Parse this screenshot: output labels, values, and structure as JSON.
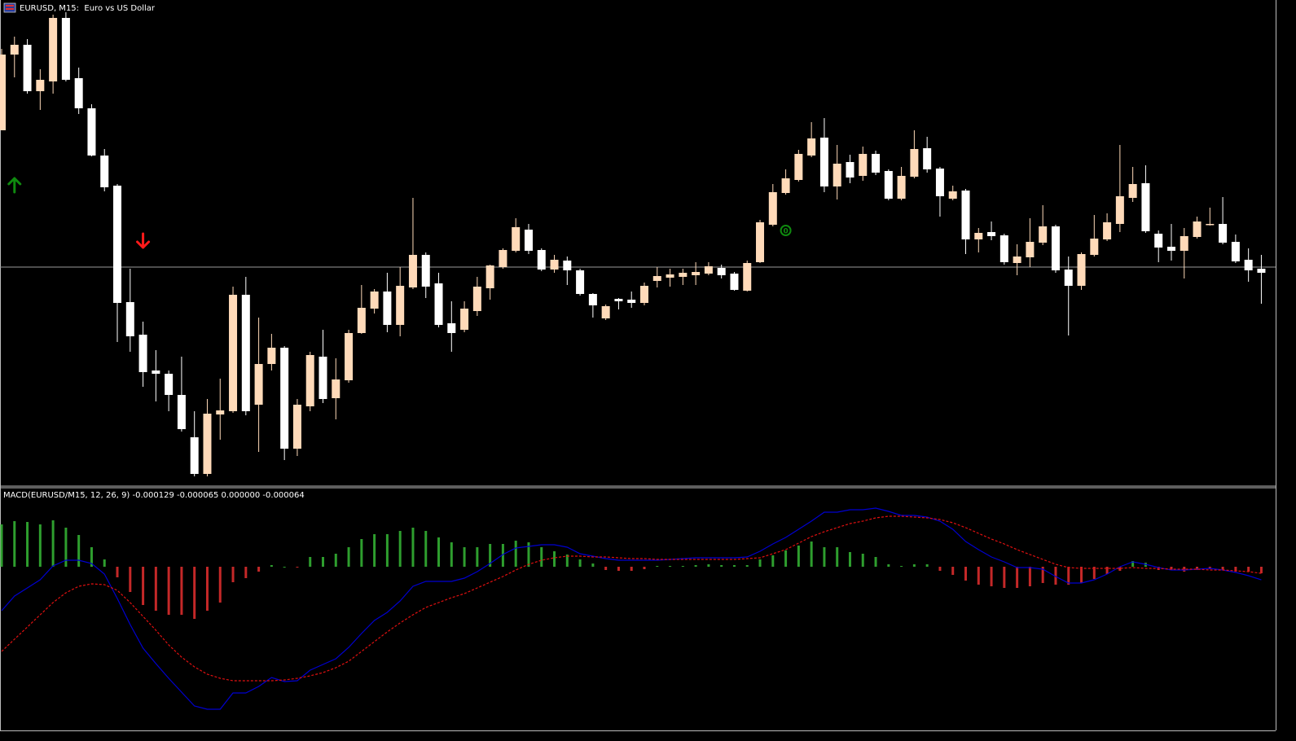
{
  "chart_data": [
    {
      "type": "candlestick",
      "title": "EURUSD, M15:  Euro vs US Dollar",
      "open": [
        436,
        529,
        541,
        484,
        496,
        574,
        500,
        463,
        405,
        368,
        225,
        185,
        141,
        137,
        111,
        59,
        14,
        87,
        91,
        234,
        99,
        149,
        169,
        45,
        97,
        158,
        107,
        129,
        187,
        217,
        238,
        197,
        243,
        283,
        248,
        199,
        191,
        214,
        242,
        268,
        288,
        314,
        289,
        265,
        276,
        264,
        235,
        205,
        229,
        228,
        224,
        251,
        255,
        256,
        258,
        260,
        267,
        260,
        239,
        274,
        320,
        359,
        375,
        405,
        427,
        367,
        397,
        380,
        407,
        386,
        352,
        379,
        414,
        389,
        352,
        362,
        302,
        311,
        307,
        273,
        280,
        298,
        318,
        265,
        245,
        283,
        302,
        321,
        353,
        371,
        309,
        293,
        288,
        305,
        320,
        321,
        299,
        277,
        266
      ],
      "high": [
        536,
        551,
        548,
        511,
        578,
        581,
        513,
        468,
        413,
        370,
        266,
        201,
        166,
        141,
        158,
        91,
        106,
        131,
        244,
        256,
        206,
        186,
        171,
        106,
        164,
        191,
        156,
        191,
        246,
        241,
        261,
        268,
        353,
        286,
        261,
        226,
        226,
        256,
        271,
        291,
        328,
        321,
        291,
        283,
        281,
        266,
        236,
        222,
        230,
        238,
        249,
        268,
        266,
        266,
        274,
        274,
        271,
        262,
        276,
        326,
        370,
        388,
        412,
        446,
        451,
        418,
        406,
        416,
        411,
        388,
        391,
        436,
        428,
        391,
        368,
        364,
        316,
        324,
        309,
        296,
        328,
        344,
        320,
        281,
        286,
        332,
        334,
        418,
        391,
        393,
        313,
        321,
        316,
        330,
        341,
        354,
        308,
        291,
        283
      ],
      "low": [
        436,
        501,
        481,
        461,
        481,
        496,
        456,
        404,
        361,
        176,
        164,
        121,
        103,
        91,
        66,
        11,
        11,
        56,
        89,
        86,
        41,
        141,
        31,
        36,
        91,
        101,
        81,
        126,
        186,
        211,
        188,
        183,
        241,
        230,
        194,
        164,
        188,
        208,
        228,
        266,
        286,
        284,
        263,
        261,
        246,
        233,
        206,
        203,
        216,
        218,
        221,
        243,
        244,
        246,
        246,
        258,
        254,
        239,
        238,
        273,
        318,
        357,
        373,
        403,
        360,
        351,
        371,
        374,
        381,
        350,
        350,
        377,
        384,
        330,
        350,
        284,
        286,
        301,
        271,
        258,
        268,
        295,
        261,
        184,
        240,
        281,
        300,
        311,
        348,
        310,
        274,
        276,
        254,
        303,
        319,
        296,
        273,
        250,
        223
      ],
      "close": [
        529,
        541,
        484,
        498,
        574,
        498,
        463,
        405,
        366,
        224,
        183,
        139,
        137,
        111,
        69,
        14,
        88,
        92,
        234,
        91,
        149,
        169,
        45,
        99,
        160,
        106,
        130,
        187,
        218,
        238,
        197,
        245,
        283,
        244,
        197,
        187,
        217,
        244,
        270,
        289,
        317,
        288,
        265,
        277,
        264,
        235,
        221,
        220,
        226,
        224,
        245,
        257,
        259,
        261,
        262,
        269,
        258,
        240,
        273,
        323,
        360,
        377,
        407,
        426,
        367,
        395,
        378,
        407,
        384,
        352,
        380,
        413,
        388,
        355,
        361,
        302,
        310,
        306,
        274,
        281,
        299,
        318,
        264,
        245,
        284,
        303,
        323,
        355,
        370,
        312,
        292,
        288,
        306,
        324,
        321,
        298,
        275,
        264,
        261
      ],
      "ylim": [
        0,
        594
      ],
      "colors": {
        "up": "#ffdab9",
        "down": "#ffffff"
      },
      "price_line": 268,
      "signals": [
        {
          "candle": 1,
          "direction": "up",
          "price": 368,
          "color": "#0f8a0f"
        },
        {
          "candle": 11,
          "direction": "down",
          "price": 301,
          "color": "#ff1a1a"
        },
        {
          "candle": 61,
          "label": "0",
          "price": 313,
          "color": "#0f8a0f"
        }
      ]
    },
    {
      "type": "macd",
      "title": "MACD(EURUSD/M15, 12, 26, 9) -0.000129 -0.000065 0.000000 -0.000064",
      "ylim": [
        -0.001608,
        0.000768
      ],
      "histogram": {
        "up_color": "#2e9e2e",
        "down_color": "#c42828",
        "values": [
          0.000416,
          0.000448,
          0.00044,
          0.000416,
          0.000456,
          0.000384,
          0.000312,
          0.000192,
          7.2e-05,
          -0.000104,
          -0.000248,
          -0.000376,
          -0.000432,
          -0.000472,
          -0.000472,
          -0.000512,
          -0.000432,
          -0.000352,
          -0.000152,
          -0.000112,
          -4.8e-05,
          1.6e-05,
          0,
          -8e-06,
          9.6e-05,
          9.6e-05,
          0.000128,
          0.000192,
          0.000272,
          0.00032,
          0.00032,
          0.000352,
          0.000384,
          0.000352,
          0.000288,
          0.00024,
          0.000192,
          0.000192,
          0.000224,
          0.000224,
          0.000256,
          0.00024,
          0.000192,
          0.000152,
          0.00012,
          7.2e-05,
          3.2e-05,
          -3.2e-05,
          -4e-05,
          -4e-05,
          -2.4e-05,
          8e-06,
          8e-06,
          8e-06,
          1.6e-05,
          2.4e-05,
          1.6e-05,
          1.6e-05,
          1.6e-05,
          7.2e-05,
          0.000112,
          0.00016,
          0.000208,
          0.000248,
          0.000192,
          0.000192,
          0.000144,
          0.000128,
          9.6e-05,
          2.4e-05,
          8e-06,
          2.4e-05,
          2.4e-05,
          -4e-05,
          -8e-05,
          -0.000136,
          -0.000176,
          -0.000192,
          -0.000208,
          -0.000208,
          -0.000192,
          -0.00016,
          -0.000176,
          -0.000176,
          -0.00016,
          -0.00012,
          -7.2e-05,
          -4e-05,
          5.6e-05,
          4e-05,
          -3.2e-05,
          -3.2e-05,
          -4.8e-05,
          -3.2e-05,
          -2.4e-05,
          -3.2e-05,
          -4.8e-05,
          -4.8e-05,
          -6.4e-05
        ]
      },
      "lines": [
        {
          "color": "#0000d0",
          "dashed": false,
          "values": [
            -0.000432,
            -0.000288,
            -0.000208,
            -0.000128,
            8e-06,
            6.4e-05,
            6.4e-05,
            3.2e-05,
            -7.2e-05,
            -0.000312,
            -0.000568,
            -0.0008,
            -0.000952,
            -0.001096,
            -0.001232,
            -0.001368,
            -0.0014,
            -0.0014,
            -0.00124,
            -0.00124,
            -0.001176,
            -0.001088,
            -0.001128,
            -0.00112,
            -0.001016,
            -0.00096,
            -0.000904,
            -0.000792,
            -0.000656,
            -0.000528,
            -0.000448,
            -0.000336,
            -0.000192,
            -0.000144,
            -0.000144,
            -0.000144,
            -0.000112,
            -4.8e-05,
            3.2e-05,
            0.00012,
            0.000184,
            0.0002,
            0.000216,
            0.000216,
            0.000192,
            0.000128,
            0.000104,
            8e-05,
            6.4e-05,
            6.4e-05,
            6.4e-05,
            6.4e-05,
            7.2e-05,
            8e-05,
            8.8e-05,
            8.8e-05,
            8.8e-05,
            8.8e-05,
            9.6e-05,
            0.000152,
            0.000224,
            0.000288,
            0.000368,
            0.000448,
            0.000536,
            0.000536,
            0.00056,
            0.00056,
            0.000576,
            0.000544,
            0.000504,
            0.000504,
            0.000488,
            0.000448,
            0.000368,
            0.000248,
            0.000168,
            9.6e-05,
            4.8e-05,
            -8e-06,
            -8e-06,
            -2.4e-05,
            -9.6e-05,
            -0.00016,
            -0.00016,
            -0.000128,
            -7.2e-05,
            0,
            4.8e-05,
            2.4e-05,
            -8e-06,
            -3.2e-05,
            -3.2e-05,
            -2.4e-05,
            -1.6e-05,
            -3.2e-05,
            -5.6e-05,
            -8.8e-05,
            -0.000129
          ]
        },
        {
          "color": "#e01010",
          "dashed": true,
          "values": [
            -0.000832,
            -0.000712,
            -0.000592,
            -0.000472,
            -0.000352,
            -0.000256,
            -0.000192,
            -0.000168,
            -0.000176,
            -0.000232,
            -0.000352,
            -0.000488,
            -0.000624,
            -0.000768,
            -0.000888,
            -0.000984,
            -0.001056,
            -0.001096,
            -0.00112,
            -0.00112,
            -0.00112,
            -0.00112,
            -0.001112,
            -0.001096,
            -0.001072,
            -0.00104,
            -0.000992,
            -0.000928,
            -0.000832,
            -0.000736,
            -0.00064,
            -0.000552,
            -0.000472,
            -0.0004,
            -0.000352,
            -0.000304,
            -0.000264,
            -0.000208,
            -0.000152,
            -9.6e-05,
            -3.2e-05,
            2.4e-05,
            6.4e-05,
            8.8e-05,
            0.000104,
            0.000104,
            9.6e-05,
            9.6e-05,
            8.8e-05,
            8e-05,
            8e-05,
            7.2e-05,
            7.2e-05,
            7.2e-05,
            7.2e-05,
            7.2e-05,
            7.2e-05,
            7.2e-05,
            8e-05,
            8.8e-05,
            0.000128,
            0.000168,
            0.000232,
            0.000296,
            0.000344,
            0.000384,
            0.000424,
            0.000448,
            0.00048,
            0.000496,
            0.000496,
            0.000488,
            0.00048,
            0.000464,
            0.000432,
            0.000384,
            0.000328,
            0.000272,
            0.000224,
            0.000168,
            0.00012,
            7.2e-05,
            2.4e-05,
            -8e-06,
            -1.6e-05,
            -1.6e-05,
            -1.6e-05,
            -1.6e-05,
            -8e-06,
            -1.6e-05,
            -1.6e-05,
            -2.4e-05,
            -2.4e-05,
            -2.4e-05,
            -3.2e-05,
            -3.2e-05,
            -4e-05,
            -4.8e-05,
            -6.5e-05
          ]
        }
      ]
    }
  ]
}
